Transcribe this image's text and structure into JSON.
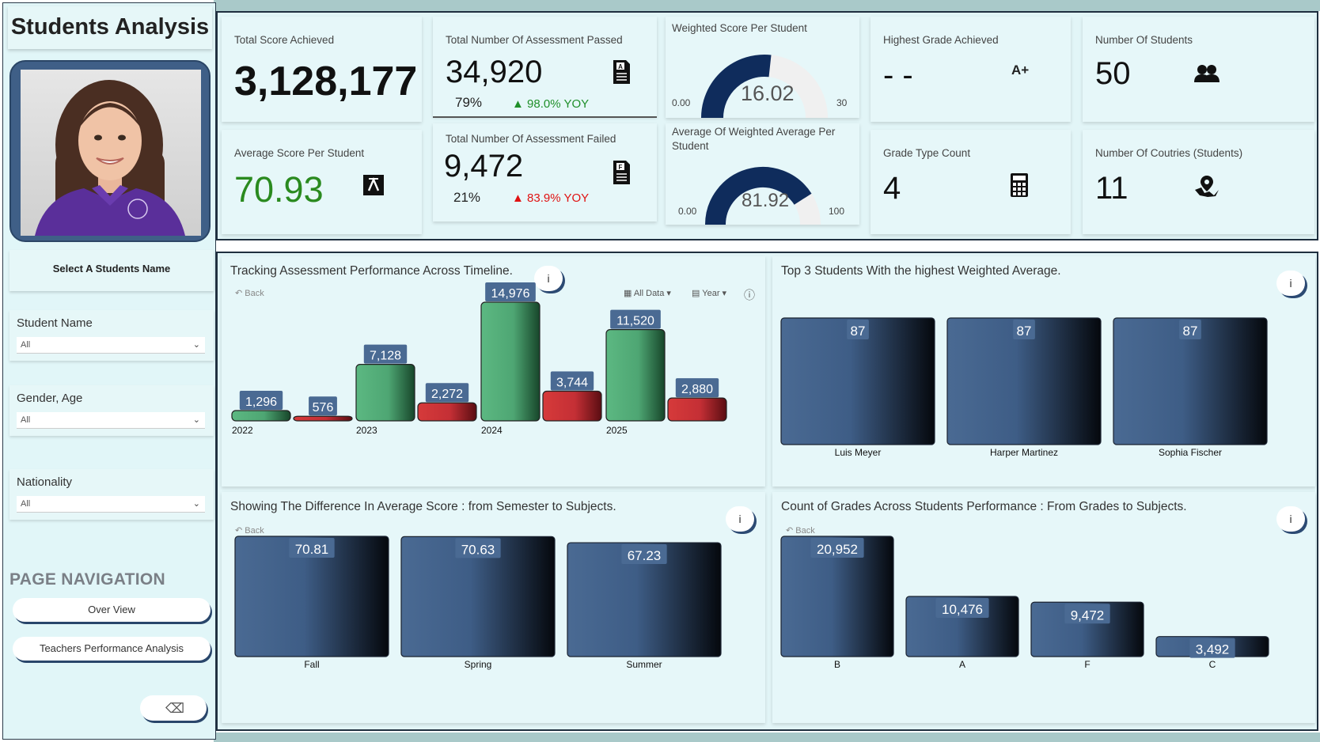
{
  "sidebar": {
    "title": "Students Analysis",
    "select_label": "Select A Students Name",
    "filters": [
      {
        "label": "Student Name",
        "value": "All"
      },
      {
        "label": "Gender, Age",
        "value": "All"
      },
      {
        "label": "Nationality",
        "value": "All"
      }
    ],
    "nav_title": "PAGE NAVIGATION",
    "nav_buttons": [
      "Over View",
      "Teachers Performance Analysis"
    ]
  },
  "kpis": {
    "total_score": {
      "title": "Total Score Achieved",
      "value": "3,128,177"
    },
    "avg_score": {
      "title": "Average Score Per Student",
      "value": "70.93"
    },
    "passed": {
      "title": "Total Number Of Assessment Passed",
      "value": "34,920",
      "pct": "79%",
      "yoy": "98.0% YOY"
    },
    "failed": {
      "title": "Total Number Of Assessment Failed",
      "value": "9,472",
      "pct": "21%",
      "yoy": "83.9% YOY"
    },
    "weighted_score": {
      "title": "Weighted Score Per Student",
      "value": "16.02",
      "min": "0.00",
      "max": "30",
      "fraction": 0.534
    },
    "weighted_avg": {
      "title": "Average Of Weighted Average Per Student",
      "value": "81.92",
      "min": "0.00",
      "max": "100",
      "fraction": 0.8192
    },
    "highest_grade": {
      "title": "Highest Grade Achieved",
      "value": "- -",
      "badge": "A+"
    },
    "grade_type": {
      "title": "Grade Type Count",
      "value": "4"
    },
    "num_students": {
      "title": "Number Of Students",
      "value": "50"
    },
    "num_countries": {
      "title": "Number Of Coutries (Students)",
      "value": "11"
    }
  },
  "panels": {
    "timeline": {
      "title": "Tracking Assessment Performance Across Timeline.",
      "back": "Back",
      "all_data": "All Data",
      "year": "Year",
      "info": "i"
    },
    "top3": {
      "title": "Top 3 Students With the highest Weighted Average.",
      "info": "i"
    },
    "semester": {
      "title": "Showing The Difference In Average Score : from Semester to Subjects.",
      "back": "Back",
      "info": "i"
    },
    "grades": {
      "title": "Count of Grades Across Students Performance : From Grades to Subjects.",
      "back": "Back",
      "info": "i"
    }
  },
  "colors": {
    "pass": "#5cb882",
    "fail": "#d63a3a",
    "bar": "#4a6a93",
    "gauge": "#0f2c5c",
    "accent": "#2c4a73",
    "positive": "#1f8f2a",
    "negative": "#e01212"
  },
  "chart_data": [
    {
      "type": "bar",
      "categories": [
        "2022",
        "2023",
        "2024",
        "2025"
      ],
      "series": [
        {
          "values": [
            1296,
            7128,
            14976,
            11520
          ]
        },
        {
          "values": [
            576,
            2272,
            3744,
            2880
          ]
        }
      ],
      "labels": [
        "1,296",
        "576",
        "7,128",
        "2,272",
        "14,976",
        "3,744",
        "11,520",
        "2,880"
      ]
    },
    {
      "type": "bar",
      "categories": [
        "Luis Meyer",
        "Harper Martinez",
        "Sophia Fischer"
      ],
      "values": [
        87,
        87,
        87
      ],
      "labels": [
        "87",
        "87",
        "87"
      ]
    },
    {
      "type": "bar",
      "categories": [
        "Fall",
        "Spring",
        "Summer"
      ],
      "values": [
        70.81,
        70.63,
        67.23
      ],
      "labels": [
        "70.81",
        "70.63",
        "67.23"
      ]
    },
    {
      "type": "bar",
      "categories": [
        "B",
        "A",
        "F",
        "C"
      ],
      "values": [
        20952,
        10476,
        9472,
        3492
      ],
      "labels": [
        "20,952",
        "10,476",
        "9,472",
        "3,492"
      ]
    }
  ]
}
